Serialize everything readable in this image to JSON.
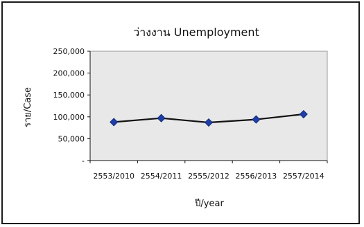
{
  "chart_data": {
    "type": "line",
    "title": "ว่างงาน  Unemployment",
    "xlabel": "ปี/year",
    "ylabel": "ราย/Case",
    "categories": [
      "2553/2010",
      "2554/2011",
      "2555/2012",
      "2556/2013",
      "2557/2014"
    ],
    "series": [
      {
        "values": [
          88000,
          97000,
          87000,
          94000,
          106000
        ]
      }
    ],
    "yticks": [
      "250,000",
      "200,000",
      "150,000",
      "100,000",
      "50,000",
      "-"
    ],
    "ylim": [
      0,
      250000
    ],
    "grid": false,
    "legend": "none",
    "colors": {
      "line": "#111111",
      "marker": "#1f3fa8",
      "plot_background": "#e8e8e8",
      "border": "#1a1a1a"
    }
  }
}
